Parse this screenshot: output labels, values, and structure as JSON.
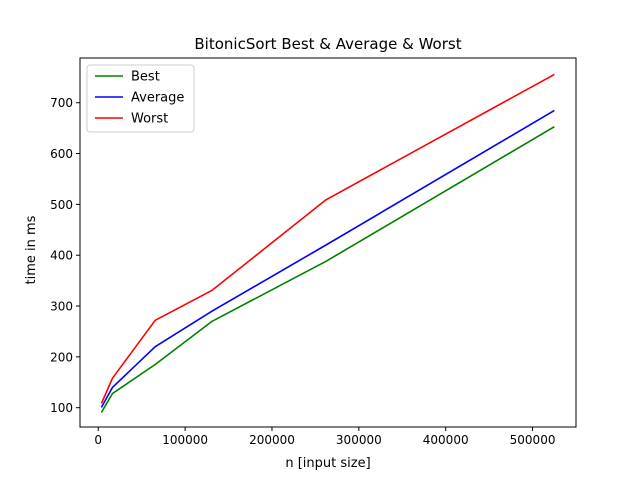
{
  "chart_data": {
    "type": "line",
    "title": "BitonicSort Best & Average & Worst",
    "xlabel": "n [input size]",
    "ylabel": "time in ms",
    "x": [
      4096,
      16384,
      65536,
      131072,
      262144,
      524288
    ],
    "xlim": [
      -21000,
      550000
    ],
    "ylim": [
      62,
      788
    ],
    "xticks": [
      0,
      100000,
      200000,
      300000,
      400000,
      500000
    ],
    "xtick_labels": [
      "0",
      "100000",
      "200000",
      "300000",
      "400000",
      "500000"
    ],
    "yticks": [
      100,
      200,
      300,
      400,
      500,
      600,
      700
    ],
    "ytick_labels": [
      "100",
      "200",
      "300",
      "400",
      "500",
      "600",
      "700"
    ],
    "grid": false,
    "legend_position": "upper-left",
    "series": [
      {
        "name": "Best",
        "color": "#008000",
        "values": [
          92,
          128,
          185,
          270,
          388,
          652
        ]
      },
      {
        "name": "Average",
        "color": "#0000ff",
        "values": [
          102,
          140,
          220,
          290,
          420,
          684
        ]
      },
      {
        "name": "Worst",
        "color": "#ff0000",
        "values": [
          110,
          158,
          272,
          331,
          509,
          755
        ]
      }
    ]
  }
}
